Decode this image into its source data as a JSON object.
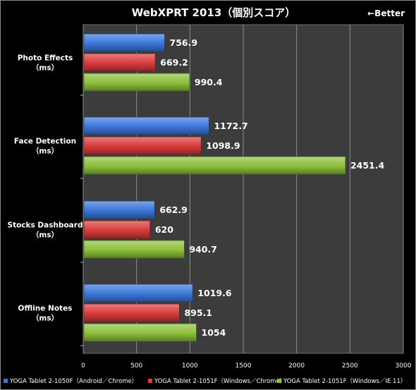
{
  "chart_data": {
    "type": "bar",
    "orientation": "horizontal",
    "title": "WebXPRT 2013（個別スコア）",
    "annotation": "←Better",
    "categories": [
      [
        "Photo Effects",
        "（ms）"
      ],
      [
        "Face Detection",
        "（ms）"
      ],
      [
        "Stocks Dashboard",
        "（ms）"
      ],
      [
        "Offline Notes",
        "（ms）"
      ]
    ],
    "series": [
      {
        "name": "YOGA Tablet 2-1050F（Android／Chrome）",
        "color": "#3a75d9",
        "values": [
          756.9,
          1172.7,
          662.9,
          1019.6
        ]
      },
      {
        "name": "YOGA Tablet 2-1051F（Windows／Chrome）",
        "color": "#d93a3a",
        "values": [
          669.2,
          1098.9,
          620,
          895.1
        ]
      },
      {
        "name": "YOGA Tablet 2-1051F（Windows／IE 11）",
        "color": "#8cbf3a",
        "values": [
          990.4,
          2451.4,
          940.7,
          1054
        ]
      }
    ],
    "value_labels": [
      [
        "756.9",
        "1172.7",
        "662.9",
        "1019.6"
      ],
      [
        "669.2",
        "1098.9",
        "620",
        "895.1"
      ],
      [
        "990.4",
        "2451.4",
        "940.7",
        "1054"
      ]
    ],
    "xlim": [
      0,
      3000
    ],
    "xticks": [
      "0",
      "500",
      "1000",
      "1500",
      "2000",
      "2500",
      "3000"
    ],
    "grid": true,
    "legend_position": "bottom"
  }
}
